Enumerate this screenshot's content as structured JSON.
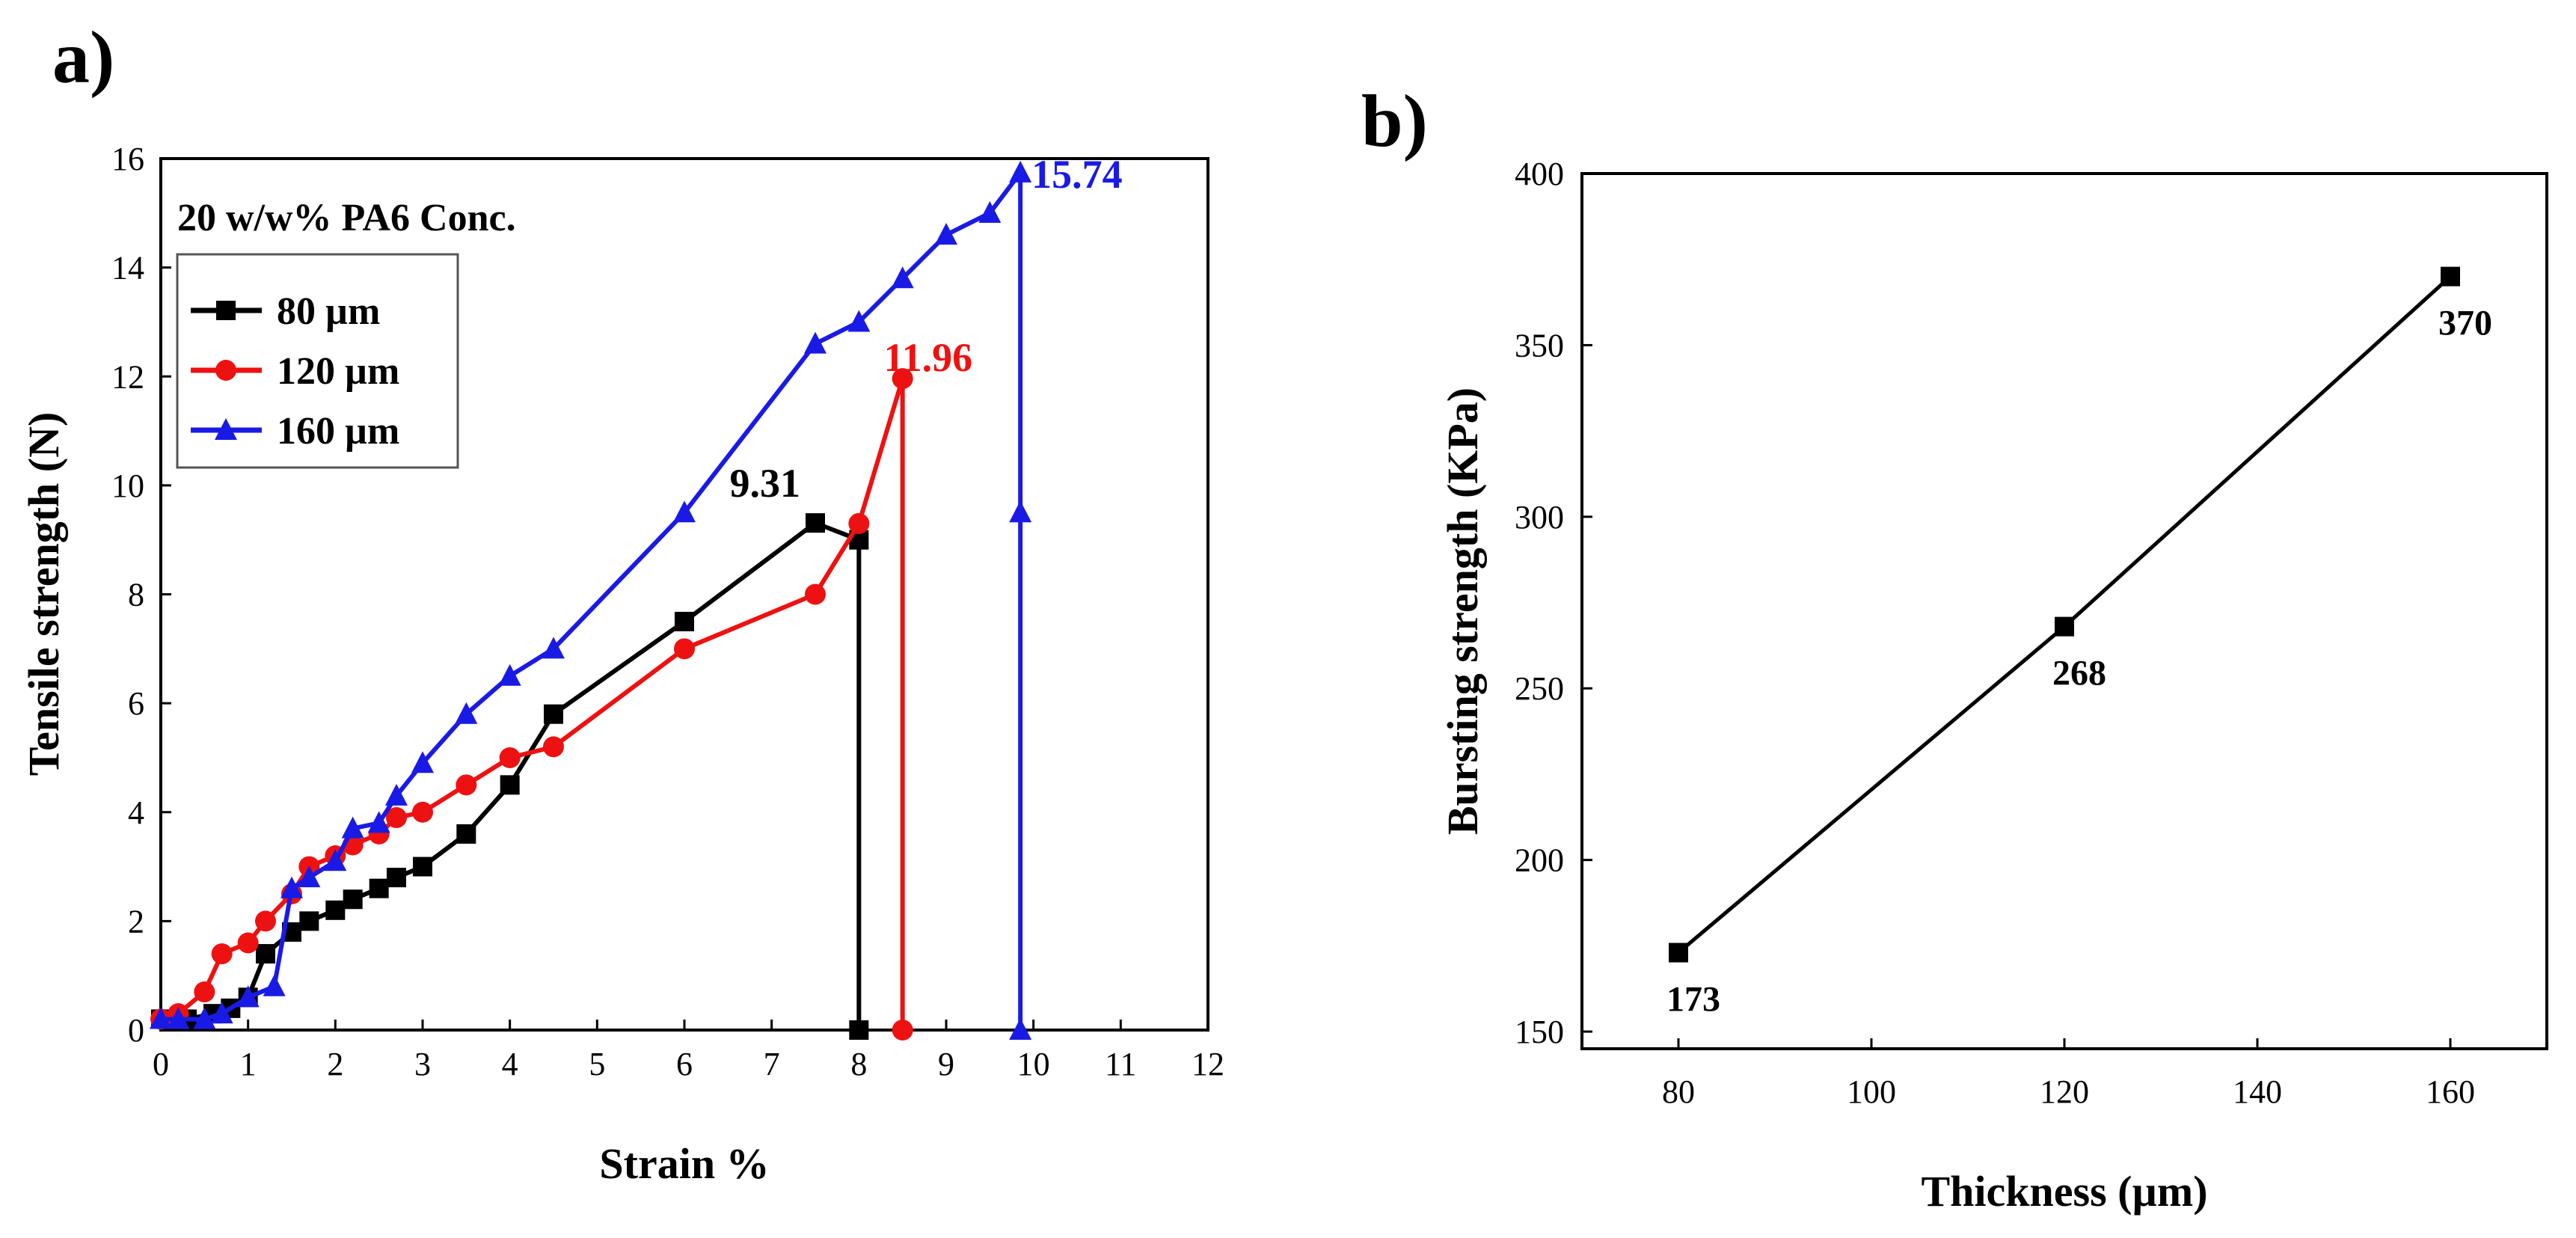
{
  "chart_data": [
    {
      "panel": "a)",
      "type": "line",
      "title": "20 w/w% PA6 Conc.",
      "xlabel": "Strain %",
      "ylabel": "Tensile strength (N)",
      "xlim": [
        0,
        12
      ],
      "ylim": [
        0,
        16
      ],
      "xticks": [
        "0",
        "1",
        "2",
        "3",
        "4",
        "5",
        "6",
        "7",
        "8",
        "9",
        "10",
        "11",
        "12"
      ],
      "yticks": [
        "0",
        "2",
        "4",
        "6",
        "8",
        "10",
        "12",
        "14",
        "16"
      ],
      "legend_position": "top-left",
      "series": [
        {
          "name": "80 µm",
          "color": "#000000",
          "marker": "square",
          "x": [
            0,
            0.3,
            0.6,
            0.8,
            1.0,
            1.2,
            1.5,
            1.7,
            2.0,
            2.2,
            2.5,
            2.7,
            3.0,
            3.5,
            4.0,
            4.5,
            6.0,
            7.5,
            8.0,
            8.0
          ],
          "y": [
            0.2,
            0.2,
            0.3,
            0.4,
            0.6,
            1.4,
            1.8,
            2.0,
            2.2,
            2.4,
            2.6,
            2.8,
            3.0,
            3.6,
            4.5,
            5.8,
            7.5,
            9.31,
            9.0,
            0.0
          ],
          "peak_label": "9.31",
          "peak_index": 17
        },
        {
          "name": "120 µm",
          "color": "#ee1111",
          "marker": "circle",
          "x": [
            0,
            0.2,
            0.5,
            0.7,
            1.0,
            1.2,
            1.5,
            1.7,
            2.0,
            2.2,
            2.5,
            2.7,
            3.0,
            3.5,
            4.0,
            4.5,
            6.0,
            7.5,
            8.0,
            8.5,
            8.5
          ],
          "y": [
            0.2,
            0.3,
            0.7,
            1.4,
            1.6,
            2.0,
            2.5,
            3.0,
            3.2,
            3.4,
            3.6,
            3.9,
            4.0,
            4.5,
            5.0,
            5.2,
            7.0,
            8.0,
            9.3,
            11.96,
            0.0
          ],
          "peak_label": "11.96",
          "peak_index": 19
        },
        {
          "name": "160 µm",
          "color": "#1a1ae6",
          "marker": "triangle",
          "x": [
            0,
            0.2,
            0.5,
            0.7,
            1.0,
            1.3,
            1.5,
            1.7,
            2.0,
            2.2,
            2.5,
            2.7,
            3.0,
            3.5,
            4.0,
            4.5,
            6.0,
            7.5,
            8.0,
            8.5,
            9.0,
            9.5,
            9.85,
            9.85,
            9.85
          ],
          "y": [
            0.2,
            0.2,
            0.2,
            0.3,
            0.6,
            0.8,
            2.6,
            2.8,
            3.1,
            3.7,
            3.8,
            4.3,
            4.9,
            5.8,
            6.5,
            7.0,
            9.5,
            12.6,
            13.0,
            13.8,
            14.6,
            15.0,
            15.74,
            9.5,
            0.0
          ],
          "peak_label": "15.74",
          "peak_index": 22
        }
      ]
    },
    {
      "panel": "b)",
      "type": "line",
      "title": "",
      "xlabel": "Thickness (µm)",
      "ylabel": "Bursting strength (KPa)",
      "xlim": [
        70,
        170
      ],
      "ylim": [
        145,
        400
      ],
      "xticks": [
        "80",
        "100",
        "120",
        "140",
        "160"
      ],
      "yticks": [
        "150",
        "200",
        "250",
        "300",
        "350",
        "400"
      ],
      "series": [
        {
          "name": "Bursting strength",
          "color": "#000000",
          "marker": "square",
          "x": [
            80,
            120,
            160
          ],
          "y": [
            173,
            268,
            370
          ],
          "labels": [
            "173",
            "268",
            "370"
          ]
        }
      ]
    }
  ]
}
